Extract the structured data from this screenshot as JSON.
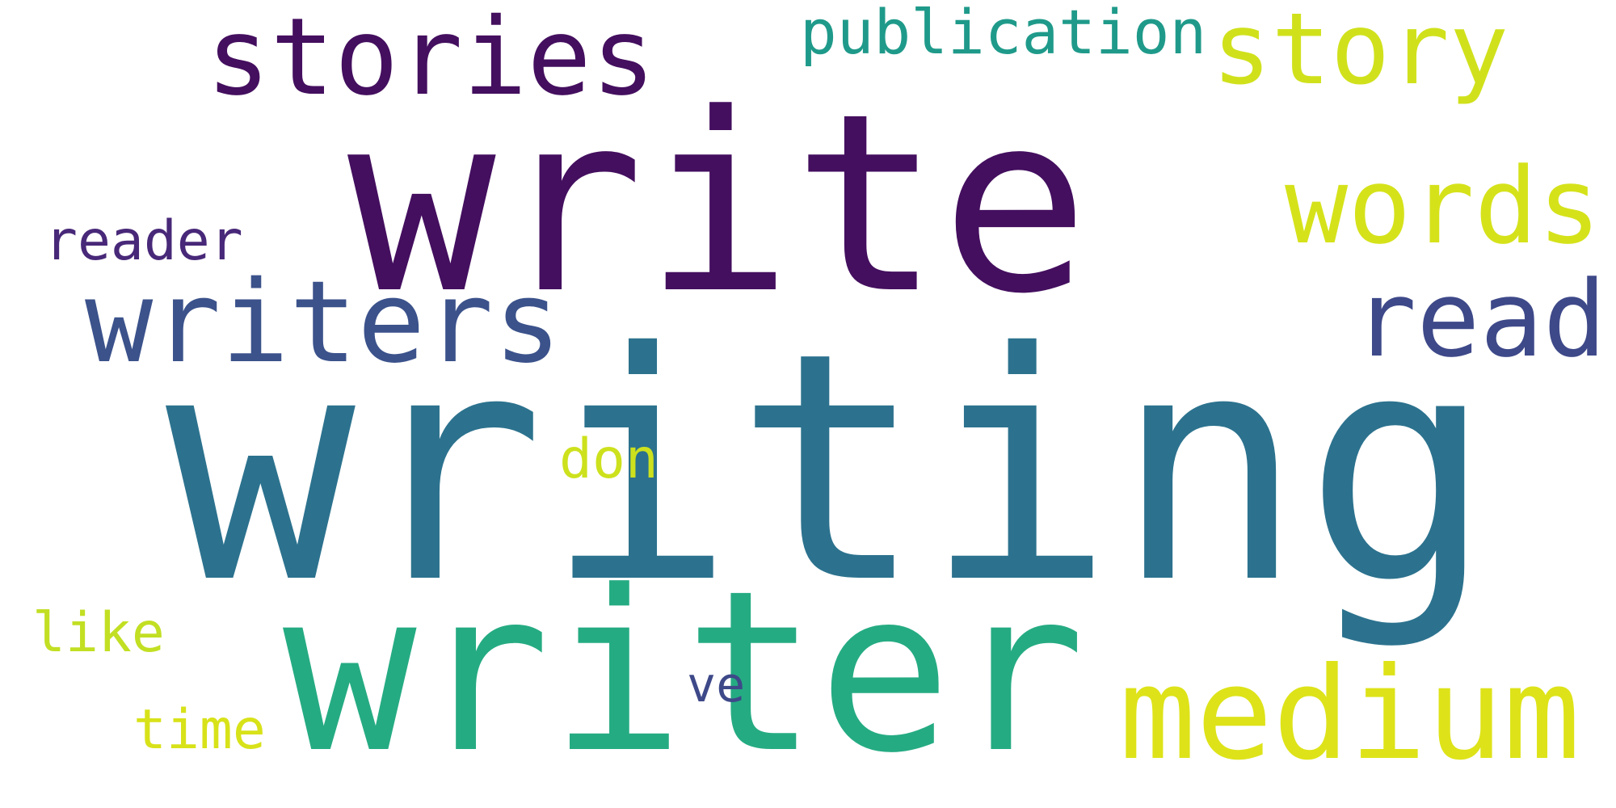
{
  "cloud": {
    "background": "#ffffff",
    "words": [
      {
        "text": "writing",
        "color": "#2c728e"
      },
      {
        "text": "write",
        "color": "#440f5f"
      },
      {
        "text": "writer",
        "color": "#25ab82"
      },
      {
        "text": "writers",
        "color": "#3b528b"
      },
      {
        "text": "stories",
        "color": "#440f5f"
      },
      {
        "text": "story",
        "color": "#d0e11c"
      },
      {
        "text": "publication",
        "color": "#1f9a8a"
      },
      {
        "text": "words",
        "color": "#d5e21a"
      },
      {
        "text": "read",
        "color": "#3e4989"
      },
      {
        "text": "medium",
        "color": "#dde318"
      },
      {
        "text": "reader",
        "color": "#482878"
      },
      {
        "text": "don",
        "color": "#cde11d"
      },
      {
        "text": "like",
        "color": "#c2df23"
      },
      {
        "text": "time",
        "color": "#d8e219"
      },
      {
        "text": "ve",
        "color": "#3e4989"
      }
    ]
  }
}
